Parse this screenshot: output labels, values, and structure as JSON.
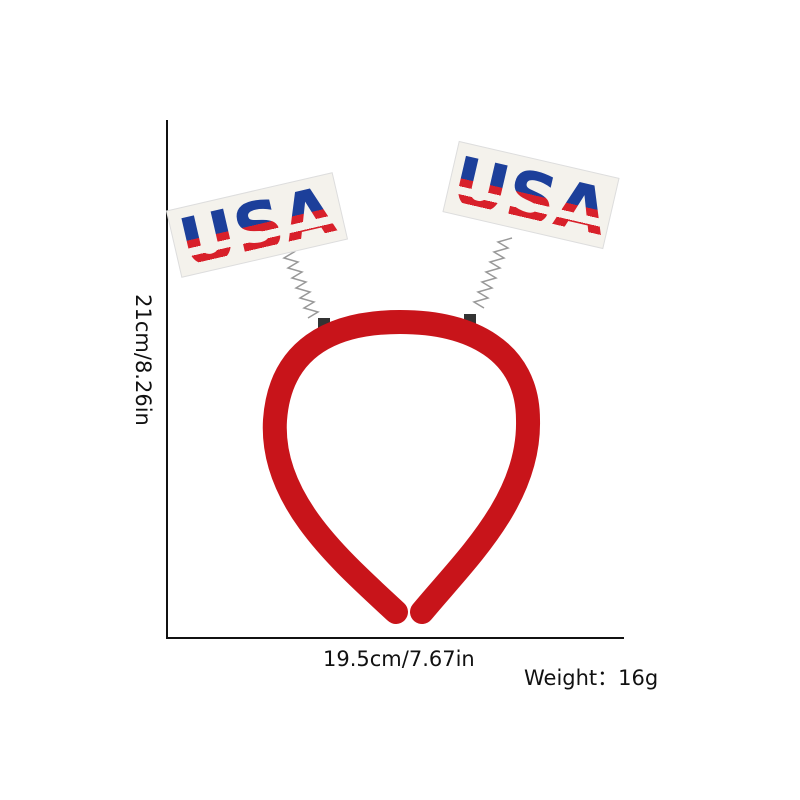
{
  "dimensions": {
    "height": "21cm/8.26in",
    "width": "19.5cm/7.67in",
    "weight": "Weight：16g"
  },
  "product": {
    "sign_text": "USA",
    "colors": {
      "band": "#c8141a",
      "sign_red": "#d8202a",
      "sign_blue": "#1c3f9a",
      "sign_white": "#f4f2ec"
    }
  }
}
